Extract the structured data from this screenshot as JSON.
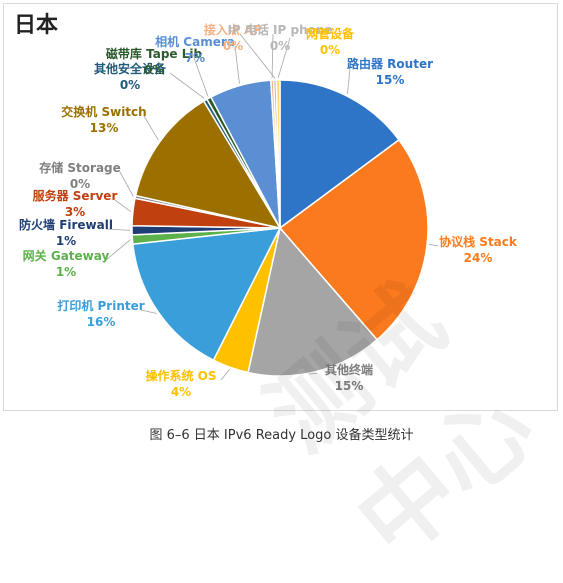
{
  "chart_data": {
    "type": "pie",
    "title": "日本",
    "slices": [
      {
        "label": "路由器 Router",
        "pct_label": "15%",
        "value": 15,
        "color": "#2e75c8"
      },
      {
        "label": "协议栈 Stack",
        "pct_label": "24%",
        "value": 24,
        "color": "#fb7a1e"
      },
      {
        "label": "其他终端",
        "pct_label": "15%",
        "value": 15,
        "color": "#a5a5a5"
      },
      {
        "label": "操作系统 OS",
        "pct_label": "4%",
        "value": 4,
        "color": "#ffc000"
      },
      {
        "label": "打印机 Printer",
        "pct_label": "16%",
        "value": 16,
        "color": "#3a9edb"
      },
      {
        "label": "网关 Gateway",
        "pct_label": "1%",
        "value": 1,
        "color": "#5db14a"
      },
      {
        "label": "防火墙 Firewall",
        "pct_label": "1%",
        "value": 1,
        "color": "#1f3e73"
      },
      {
        "label": "服务器 Server",
        "pct_label": "3%",
        "value": 3,
        "color": "#c0400f"
      },
      {
        "label": "存储 Storage",
        "pct_label": "0%",
        "value": 0.3,
        "color": "#7f7f7f"
      },
      {
        "label": "交换机 Switch",
        "pct_label": "13%",
        "value": 13,
        "color": "#9c7000"
      },
      {
        "label": "其他安全设备",
        "pct_label": "0%",
        "value": 0.4,
        "color": "#205a7a"
      },
      {
        "label": "磁带库 Tape Lib",
        "pct_label": "0%",
        "value": 0.5,
        "color": "#2c5a2c"
      },
      {
        "label": "相机 Camera",
        "pct_label": "7%",
        "value": 6.8,
        "color": "#5b8fd4"
      },
      {
        "label": "接入点 AP",
        "pct_label": "0%",
        "value": 0.3,
        "color": "#f4b183"
      },
      {
        "label": "IP 电话 IP phone",
        "pct_label": "0%",
        "value": 0.3,
        "color": "#b8b8b8"
      },
      {
        "label": "网管设备",
        "pct_label": "0%",
        "value": 0.4,
        "color": "#ffd966"
      }
    ]
  },
  "caption": "图 6–6 日本 IPv6 Ready Logo 设备类型统计",
  "watermark": "测试中心"
}
